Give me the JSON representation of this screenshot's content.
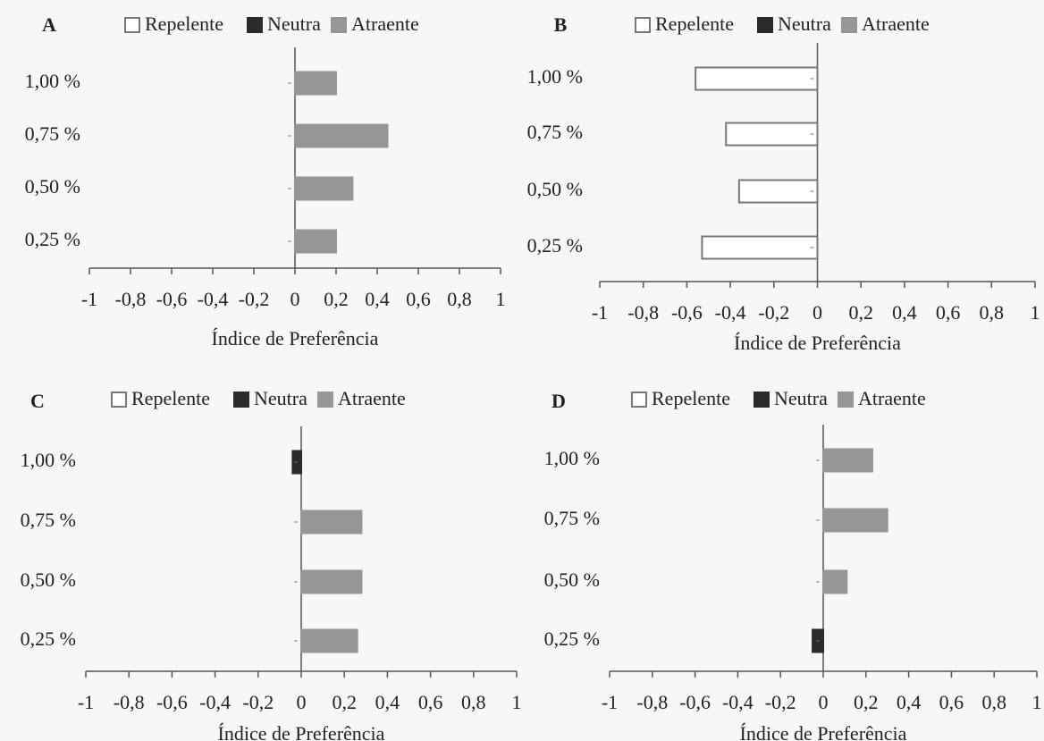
{
  "legend": {
    "items": [
      {
        "key": "repelente",
        "label": "Repelente",
        "color": "#ffffff",
        "stroke": "#777777"
      },
      {
        "key": "neutra",
        "label": "Neutra",
        "color": "#2b2b2b",
        "stroke": "#2b2b2b"
      },
      {
        "key": "atraente",
        "label": "Atraente",
        "color": "#969696",
        "stroke": "#969696"
      }
    ]
  },
  "chart_data": [
    {
      "type": "bar",
      "orientation": "horizontal",
      "panel": "A",
      "categories": [
        "1,00 %",
        "0,75 %",
        "0,50 %",
        "0,25 %"
      ],
      "values": [
        0.2,
        0.45,
        0.28,
        0.2
      ],
      "classes": [
        "atraente",
        "atraente",
        "atraente",
        "atraente"
      ],
      "xlabel": "Índice de Preferência",
      "xticks": [
        "-1",
        "-0,8",
        "-0,6",
        "-0,4",
        "-0,2",
        "0",
        "0,2",
        "0,4",
        "0,6",
        "0,8",
        "1"
      ],
      "xlim": [
        -1,
        1
      ],
      "grid": false,
      "legend_position": "top"
    },
    {
      "type": "bar",
      "orientation": "horizontal",
      "panel": "B",
      "categories": [
        "1,00 %",
        "0,75 %",
        "0,50 %",
        "0,25 %"
      ],
      "values": [
        -0.56,
        -0.42,
        -0.36,
        -0.53
      ],
      "classes": [
        "repelente",
        "repelente",
        "repelente",
        "repelente"
      ],
      "xlabel": "Índice de Preferência",
      "xticks": [
        "-1",
        "-0,8",
        "-0,6",
        "-0,4",
        "-0,2",
        "0",
        "0,2",
        "0,4",
        "0,6",
        "0,8",
        "1"
      ],
      "xlim": [
        -1,
        1
      ],
      "grid": false,
      "legend_position": "top"
    },
    {
      "type": "bar",
      "orientation": "horizontal",
      "panel": "C",
      "categories": [
        "1,00 %",
        "0,75 %",
        "0,50 %",
        "0,25 %"
      ],
      "values": [
        -0.04,
        0.28,
        0.28,
        0.26
      ],
      "classes": [
        "neutra",
        "atraente",
        "atraente",
        "atraente"
      ],
      "xlabel": "Índice de Preferência",
      "xticks": [
        "-1",
        "-0,8",
        "-0,6",
        "-0,4",
        "-0,2",
        "0",
        "0,2",
        "0,4",
        "0,6",
        "0,8",
        "1"
      ],
      "xlim": [
        -1,
        1
      ],
      "grid": false,
      "legend_position": "top"
    },
    {
      "type": "bar",
      "orientation": "horizontal",
      "panel": "D",
      "categories": [
        "1,00 %",
        "0,75 %",
        "0,50 %",
        "0,25 %"
      ],
      "values": [
        0.23,
        0.3,
        0.11,
        -0.05
      ],
      "classes": [
        "atraente",
        "atraente",
        "atraente",
        "neutra"
      ],
      "xlabel": "Índice de Preferência",
      "xticks": [
        "-1",
        "-0,8",
        "-0,6",
        "-0,4",
        "-0,2",
        "0",
        "0,2",
        "0,4",
        "0,6",
        "0,8",
        "1"
      ],
      "xlim": [
        -1,
        1
      ],
      "grid": false,
      "legend_position": "top"
    }
  ]
}
